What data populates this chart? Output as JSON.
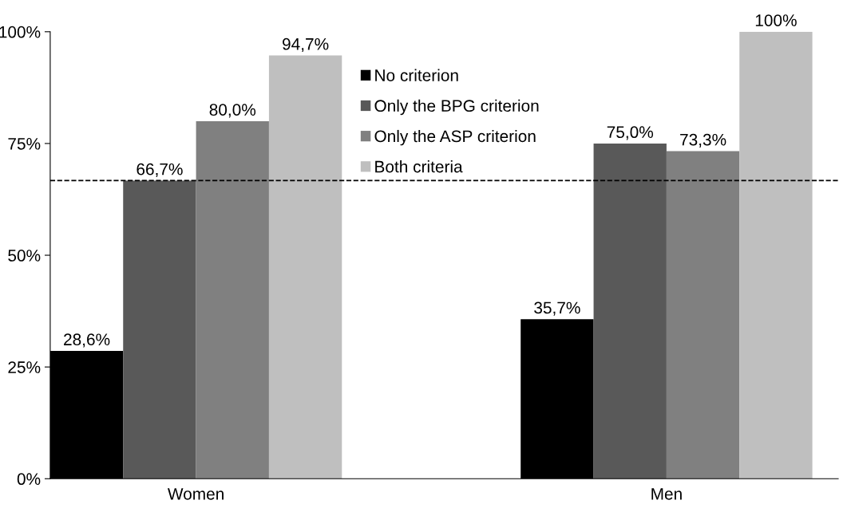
{
  "chart_data": {
    "type": "bar",
    "categories": [
      "Women",
      "Men"
    ],
    "series": [
      {
        "name": "No criterion",
        "color": "#000000",
        "values": [
          28.6,
          35.7
        ],
        "value_labels": [
          "28,6%",
          "35,7%"
        ]
      },
      {
        "name": "Only the BPG criterion",
        "color": "#595959",
        "values": [
          66.7,
          75.0
        ],
        "value_labels": [
          "66,7%",
          "75,0%"
        ]
      },
      {
        "name": "Only the ASP criterion",
        "color": "#808080",
        "values": [
          80.0,
          73.3
        ],
        "value_labels": [
          "80,0%",
          "73,3%"
        ]
      },
      {
        "name": "Both criteria",
        "color": "#bfbfbf",
        "values": [
          94.7,
          100
        ],
        "value_labels": [
          "94,7%",
          "100%"
        ]
      }
    ],
    "ylim": [
      0,
      100
    ],
    "yticks": [
      {
        "value": 0,
        "label": "0%"
      },
      {
        "value": 25,
        "label": "25%"
      },
      {
        "value": 50,
        "label": "50%"
      },
      {
        "value": 75,
        "label": "75%"
      },
      {
        "value": 100,
        "label": "100%"
      }
    ],
    "ref_lines": [
      {
        "axis": "y",
        "value": 66.7,
        "color": "#000000",
        "line_style": "dashed"
      }
    ],
    "grid": false,
    "legend": "top"
  }
}
